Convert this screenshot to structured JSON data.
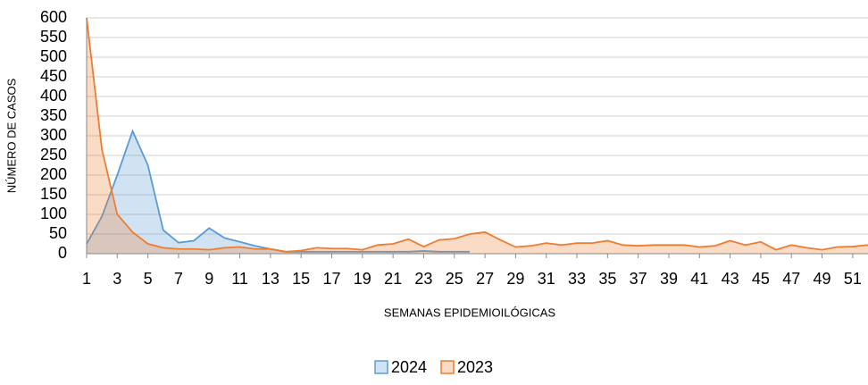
{
  "chart_data": {
    "type": "area",
    "y_label": "NÚMERO DE CASOS",
    "x_label": "SEMANAS EPIDEMIOILÓGICAS",
    "x": [
      1,
      2,
      3,
      4,
      5,
      6,
      7,
      8,
      9,
      10,
      11,
      12,
      13,
      14,
      15,
      16,
      17,
      18,
      19,
      20,
      21,
      22,
      23,
      24,
      25,
      26,
      27,
      28,
      29,
      30,
      31,
      32,
      33,
      34,
      35,
      36,
      37,
      38,
      39,
      40,
      41,
      42,
      43,
      44,
      45,
      46,
      47,
      48,
      49,
      50,
      51,
      52
    ],
    "xlim": [
      1,
      52
    ],
    "xticks": [
      1,
      3,
      5,
      7,
      9,
      11,
      13,
      15,
      17,
      19,
      21,
      23,
      25,
      27,
      29,
      31,
      33,
      35,
      37,
      39,
      41,
      43,
      45,
      47,
      49,
      51
    ],
    "ylim": [
      0,
      600
    ],
    "yticks": [
      0,
      50,
      100,
      150,
      200,
      250,
      300,
      350,
      400,
      450,
      500,
      550,
      600
    ],
    "grid": true,
    "legend": "bottom",
    "series": [
      {
        "name": "2024",
        "color": "#5b9bd5",
        "values": [
          25,
          95,
          200,
          312,
          225,
          60,
          28,
          33,
          65,
          40,
          30,
          20,
          12,
          5,
          5,
          5,
          5,
          5,
          5,
          5,
          5,
          5,
          7,
          5,
          5,
          5,
          null,
          null,
          null,
          null,
          null,
          null,
          null,
          null,
          null,
          null,
          null,
          null,
          null,
          null,
          null,
          null,
          null,
          null,
          null,
          null,
          null,
          null,
          null,
          null,
          null,
          null
        ]
      },
      {
        "name": "2023",
        "color": "#ed7d31",
        "values": [
          600,
          265,
          100,
          55,
          25,
          15,
          12,
          12,
          10,
          15,
          17,
          12,
          12,
          5,
          8,
          15,
          13,
          13,
          10,
          22,
          25,
          37,
          18,
          35,
          38,
          50,
          55,
          35,
          17,
          20,
          27,
          22,
          27,
          27,
          33,
          22,
          20,
          22,
          22,
          22,
          17,
          20,
          33,
          22,
          30,
          10,
          22,
          15,
          10,
          17,
          18,
          22
        ]
      }
    ]
  }
}
